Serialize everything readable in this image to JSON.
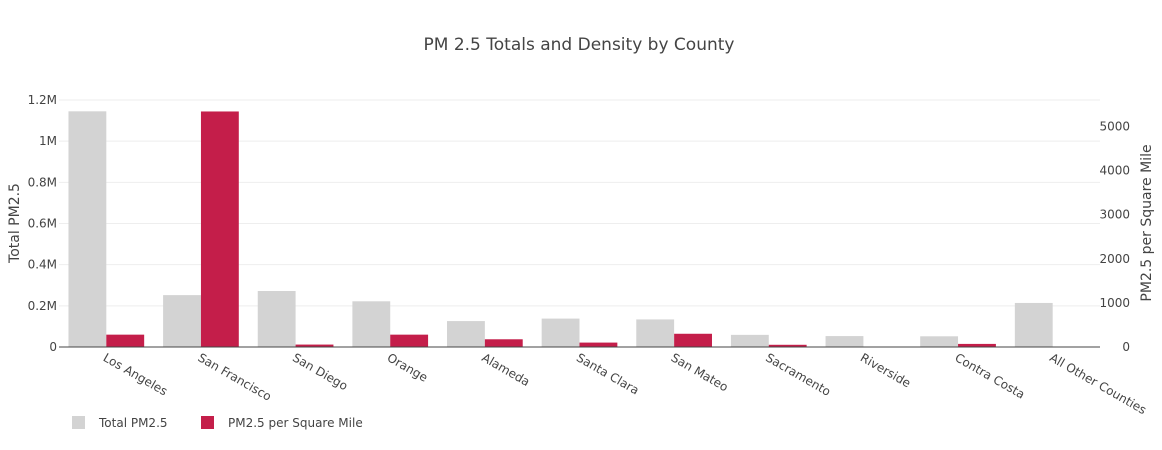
{
  "chart_data": {
    "type": "bar",
    "title": "PM 2.5 Totals and Density by County",
    "categories": [
      "Los Angeles",
      "San Francisco",
      "San Diego",
      "Orange",
      "Alameda",
      "Santa Clara",
      "San Mateo",
      "Sacramento",
      "Riverside",
      "Contra Costa",
      "All Other Counties"
    ],
    "series": [
      {
        "name": "Total PM2.5",
        "axis": "left",
        "color": "#d3d3d3",
        "values": [
          1145000,
          252000,
          272000,
          222000,
          126000,
          138000,
          134000,
          59000,
          53000,
          52000,
          214000
        ]
      },
      {
        "name": "PM2.5 per Square Mile",
        "axis": "right",
        "color": "#c41e4a",
        "values": [
          280,
          5340,
          55,
          280,
          175,
          100,
          300,
          50,
          5,
          70,
          10
        ]
      }
    ],
    "ylabel": "Total PM2.5",
    "y2label": "PM2.5 per Square Mile",
    "ylim": [
      0,
      1200000
    ],
    "y2lim": [
      0,
      5600
    ],
    "yticks": [
      "0",
      "0.2M",
      "0.4M",
      "0.6M",
      "0.8M",
      "1M",
      "1.2M"
    ],
    "y2ticks": [
      "0",
      "1000",
      "2000",
      "3000",
      "4000",
      "5000"
    ],
    "grid": true,
    "legend_position": "bottom-left"
  }
}
